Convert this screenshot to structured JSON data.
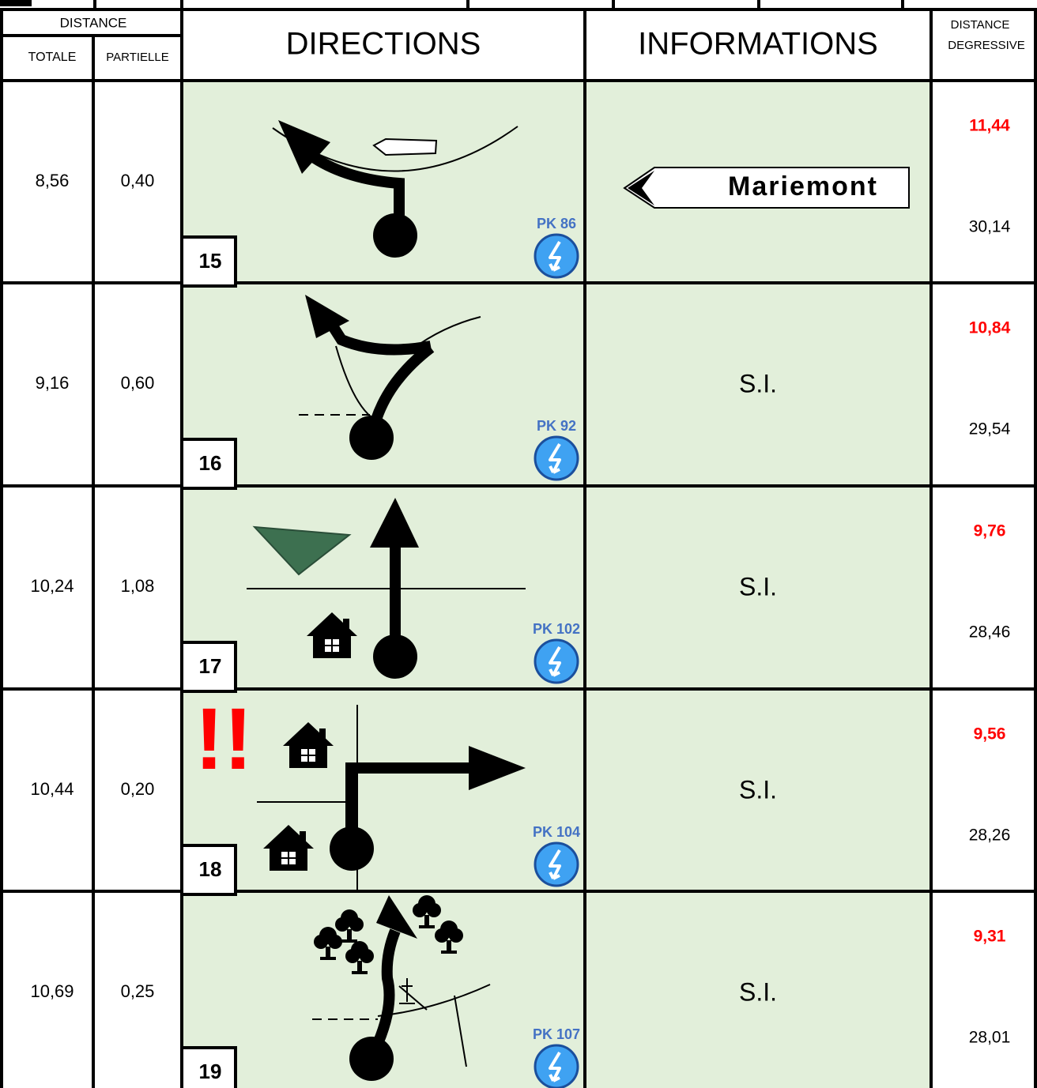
{
  "header": {
    "distance": "DISTANCE",
    "totale": "TOTALE",
    "partielle": "PARTIELLE",
    "directions": "DIRECTIONS",
    "informations": "INFORMATIONS",
    "degressive_top": "DISTANCE",
    "degressive_bottom": "DEGRESSIVE"
  },
  "rows": [
    {
      "step": "15",
      "totale": "8,56",
      "partielle": "0,40",
      "pk": "PK 86",
      "info": "Mariemont",
      "remaining_red": "11,44",
      "remaining": "30,14"
    },
    {
      "step": "16",
      "totale": "9,16",
      "partielle": "0,60",
      "pk": "PK 92",
      "info": "S.I.",
      "remaining_red": "10,84",
      "remaining": "29,54"
    },
    {
      "step": "17",
      "totale": "10,24",
      "partielle": "1,08",
      "pk": "PK 102",
      "info": "S.I.",
      "remaining_red": "9,76",
      "remaining": "28,46"
    },
    {
      "step": "18",
      "totale": "10,44",
      "partielle": "0,20",
      "pk": "PK 104",
      "info": "S.I.",
      "remaining_red": "9,56",
      "remaining": "28,26",
      "alert": "!!"
    },
    {
      "step": "19",
      "totale": "10,69",
      "partielle": "0,25",
      "pk": "PK 107",
      "info": "S.I.",
      "remaining_red": "9,31",
      "remaining": "28,01"
    }
  ]
}
